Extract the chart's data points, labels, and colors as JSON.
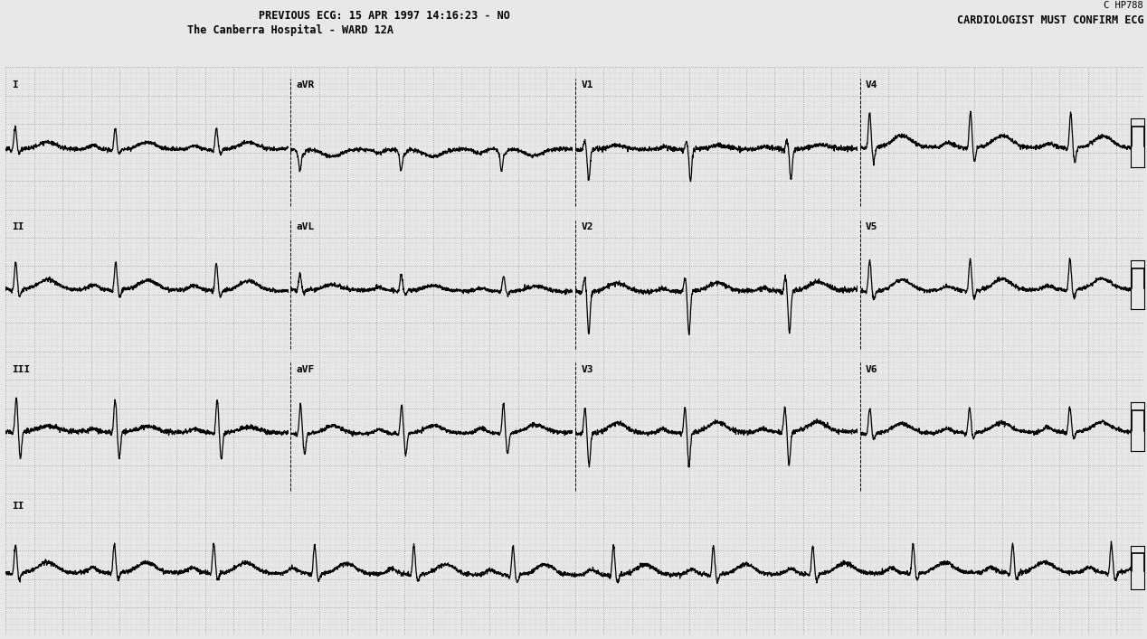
{
  "background_color": "#e8e8e8",
  "grid_dot_color": "#aaaaaa",
  "grid_major_color": "#888888",
  "line_color": "#000000",
  "header_left_line1": "PREVIOUS ECG: 15 APR 1997 14:16:23 - NO",
  "header_left_line2": "The Canberra Hospital - WARD 12A",
  "header_right_top": "C HP788",
  "header_right_bottom": "CARDIOLOGIST MUST CONFIRM ECG",
  "font_family": "monospace",
  "fig_width": 12.68,
  "fig_height": 7.07,
  "dpi": 100
}
